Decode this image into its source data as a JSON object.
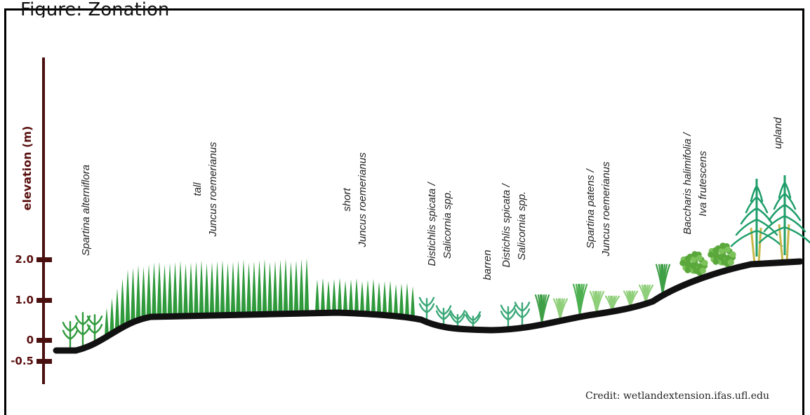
{
  "caption": "Figure: Zonation",
  "axis": {
    "title": "elevation (m)",
    "ticks": [
      {
        "label": "2.0",
        "value": 2.0
      },
      {
        "label": "1.0",
        "value": 1.0
      },
      {
        "label": "0",
        "value": 0
      },
      {
        "label": "-0.5",
        "value": -0.5
      }
    ]
  },
  "zones": [
    {
      "id": "spartina-alterniflora",
      "lines": [
        "Spartina alterniflora"
      ]
    },
    {
      "id": "tall-juncus",
      "lines": [
        "tall",
        "Juncus roemerianus"
      ]
    },
    {
      "id": "short-juncus",
      "lines": [
        "short",
        "Juncus roemerianus"
      ]
    },
    {
      "id": "distichlis-1",
      "lines": [
        "Distichlis spicata /",
        "Salicornia spp."
      ]
    },
    {
      "id": "barren",
      "lines": [
        "barren"
      ]
    },
    {
      "id": "distichlis-2",
      "lines": [
        "Distichlis spicata /",
        "Salicornia spp."
      ]
    },
    {
      "id": "spartina-patens",
      "lines": [
        "Spartina patens /",
        "Juncus roemerianus"
      ]
    },
    {
      "id": "baccharis",
      "lines": [
        "Baccharis halimifolia /",
        "Iva frutescens"
      ]
    },
    {
      "id": "upland",
      "lines": [
        "upland"
      ]
    }
  ],
  "credit": "Credit: wetlandextension.ifas.ufl.edu",
  "colors": {
    "axis": "#4a0f0f",
    "ground": "#111111",
    "tall_grass": "#2f9a3c",
    "light_grass": "#8fcf7a",
    "shrub": "#5aa83c",
    "tree": "#1f9e6a",
    "trunk": "#c8b84a"
  }
}
